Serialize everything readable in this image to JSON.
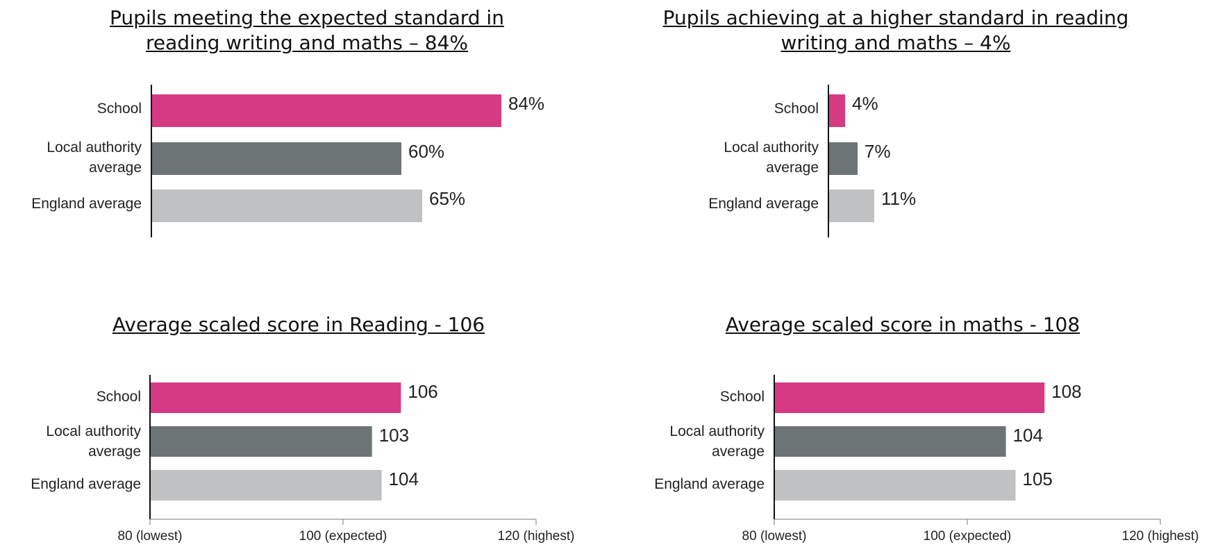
{
  "chart_data": [
    {
      "type": "bar",
      "orientation": "horizontal",
      "title": "Pupils meeting the expected standard in reading writing and maths – 84%",
      "categories": [
        "School",
        "Local authority average",
        "England average"
      ],
      "values": [
        84,
        60,
        65
      ],
      "value_labels": [
        "84%",
        "60%",
        "65%"
      ],
      "colors": [
        "#d63a82",
        "#6d7476",
        "#c0c1c3"
      ],
      "xlim": [
        0,
        100
      ]
    },
    {
      "type": "bar",
      "orientation": "horizontal",
      "title": "Pupils achieving at a higher standard in reading writing and maths – 4%",
      "categories": [
        "School",
        "Local authority average",
        "England average"
      ],
      "values": [
        4,
        7,
        11
      ],
      "value_labels": [
        "4%",
        "7%",
        "11%"
      ],
      "colors": [
        "#d63a82",
        "#6d7476",
        "#c0c1c3"
      ],
      "xlim": [
        0,
        100
      ]
    },
    {
      "type": "bar",
      "orientation": "horizontal",
      "title": "Average scaled score in Reading - 106",
      "categories": [
        "School",
        "Local authority average",
        "England average"
      ],
      "values": [
        106,
        103,
        104
      ],
      "value_labels": [
        "106",
        "103",
        "104"
      ],
      "colors": [
        "#d63a82",
        "#6d7476",
        "#c0c1c3"
      ],
      "xlim": [
        80,
        120
      ],
      "xticks": [
        80,
        100,
        120
      ],
      "xtick_labels": [
        "80 (lowest)",
        "100 (expected)",
        "120 (highest)"
      ]
    },
    {
      "type": "bar",
      "orientation": "horizontal",
      "title": "Average scaled score in maths - 108",
      "categories": [
        "School",
        "Local authority average",
        "England average"
      ],
      "values": [
        108,
        104,
        105
      ],
      "value_labels": [
        "108",
        "104",
        "105"
      ],
      "colors": [
        "#d63a82",
        "#6d7476",
        "#c0c1c3"
      ],
      "xlim": [
        80,
        120
      ],
      "xticks": [
        80,
        100,
        120
      ],
      "xtick_labels": [
        "80 (lowest)",
        "100 (expected)",
        "120 (highest)"
      ]
    }
  ]
}
